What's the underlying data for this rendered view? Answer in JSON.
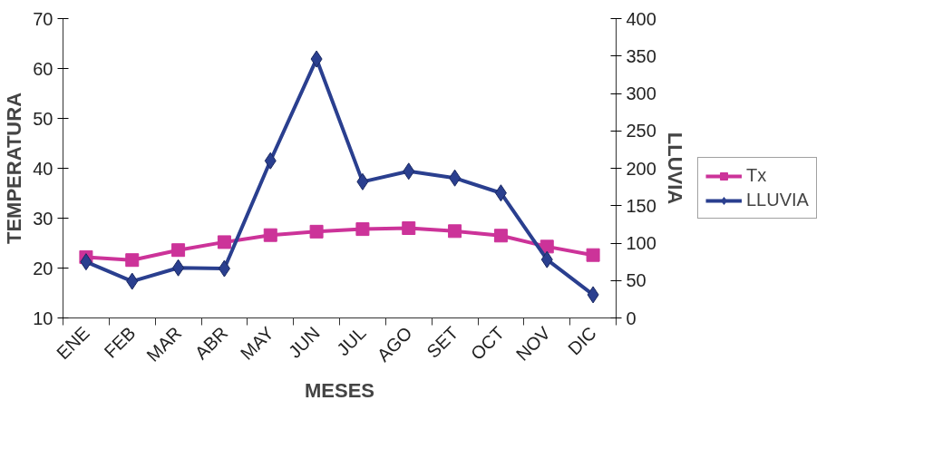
{
  "chart_data": {
    "type": "line",
    "xlabel": "MESES",
    "ylabel": "TEMPERATURA",
    "y2label": "LLUVIA",
    "categories": [
      "ENE",
      "FEB",
      "MAR",
      "ABR",
      "MAY",
      "JUN",
      "JUL",
      "AGO",
      "SET",
      "OCT",
      "NOV",
      "DIC"
    ],
    "series": [
      {
        "name": "Tx",
        "color": "#cc3399",
        "marker": "square",
        "values": [
          22.2,
          21.6,
          23.6,
          25.2,
          26.6,
          27.3,
          27.8,
          28,
          27.4,
          26.5,
          24.3,
          22.6
        ]
      },
      {
        "name": "LLUVIA",
        "color": "#2a3f8f",
        "marker": "diamond",
        "axis": "y2",
        "values": [
          75,
          49,
          67,
          66,
          210,
          346,
          182,
          196,
          187,
          167,
          78,
          31
        ]
      }
    ],
    "ylim": [
      10,
      70
    ],
    "yticks": [
      10,
      20,
      30,
      40,
      50,
      60,
      70
    ],
    "y2lim": [
      0,
      400
    ],
    "y2ticks": [
      0,
      50,
      100,
      150,
      200,
      250,
      300,
      350,
      400
    ],
    "grid": false,
    "legend": "right",
    "line_style": "solid"
  }
}
